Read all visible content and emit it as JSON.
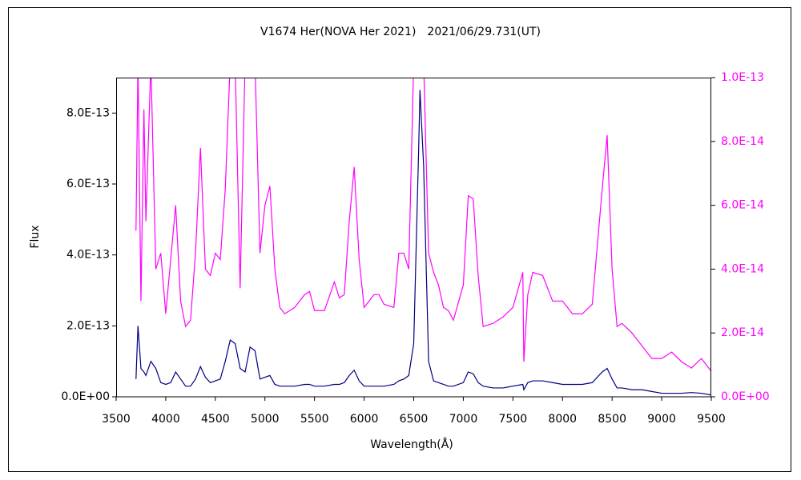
{
  "chart_data": {
    "type": "line",
    "title": "V1674 Her(NOVA Her 2021)　2021/06/29.731(UT)",
    "xlabel": "Wavelength(Å)",
    "ylabel": "Flux",
    "x": [
      3700,
      3720,
      3750,
      3780,
      3800,
      3850,
      3900,
      3950,
      4000,
      4050,
      4100,
      4150,
      4200,
      4250,
      4300,
      4350,
      4400,
      4450,
      4500,
      4550,
      4600,
      4650,
      4700,
      4750,
      4800,
      4850,
      4900,
      4950,
      5000,
      5050,
      5100,
      5150,
      5200,
      5300,
      5400,
      5450,
      5500,
      5600,
      5700,
      5750,
      5800,
      5850,
      5900,
      5950,
      6000,
      6100,
      6150,
      6200,
      6300,
      6350,
      6400,
      6450,
      6500,
      6550,
      6563,
      6600,
      6650,
      6700,
      6750,
      6800,
      6850,
      6900,
      7000,
      7050,
      7100,
      7150,
      7200,
      7300,
      7400,
      7500,
      7600,
      7610,
      7650,
      7700,
      7800,
      7900,
      8000,
      8100,
      8200,
      8300,
      8400,
      8450,
      8500,
      8550,
      8600,
      8700,
      8800,
      8900,
      9000,
      9100,
      9200,
      9300,
      9400,
      9500
    ],
    "series": [
      {
        "color": "#000080",
        "values": [
          5e-14,
          2e-13,
          8e-14,
          7e-14,
          6e-14,
          1e-13,
          8e-14,
          4e-14,
          3.5e-14,
          4e-14,
          7e-14,
          5e-14,
          3e-14,
          3e-14,
          5e-14,
          8.5e-14,
          5.5e-14,
          4e-14,
          4.5e-14,
          5e-14,
          1e-13,
          1.6e-13,
          1.5e-13,
          8e-14,
          7e-14,
          1.4e-13,
          1.3e-13,
          5e-14,
          5.5e-14,
          6e-14,
          3.5e-14,
          3e-14,
          3e-14,
          3e-14,
          3.5e-14,
          3.5e-14,
          3e-14,
          3e-14,
          3.5e-14,
          3.5e-14,
          4e-14,
          6e-14,
          7.5e-14,
          4.5e-14,
          3e-14,
          3e-14,
          3e-14,
          3e-14,
          3.5e-14,
          4.5e-14,
          5e-14,
          6e-14,
          1.5e-13,
          7e-13,
          8.65e-13,
          6.5e-13,
          1e-13,
          4.5e-14,
          4e-14,
          3.5e-14,
          3e-14,
          3e-14,
          4e-14,
          7e-14,
          6.5e-14,
          4e-14,
          3e-14,
          2.5e-14,
          2.5e-14,
          3e-14,
          3.5e-14,
          2e-14,
          4e-14,
          4.5e-14,
          4.5e-14,
          4e-14,
          3.5e-14,
          3.5e-14,
          3.5e-14,
          4e-14,
          7e-14,
          8e-14,
          5e-14,
          2.5e-14,
          2.5e-14,
          2e-14,
          2e-14,
          1.5e-14,
          1e-14,
          1e-14,
          1e-14,
          1.2e-14,
          1e-14,
          5e-15
        ]
      },
      {
        "color": "#ff00ff",
        "axis": "y2",
        "values": [
          5.2e-14,
          1.05e-13,
          3e-14,
          9e-14,
          5.5e-14,
          1.05e-13,
          4e-14,
          4.5e-14,
          2.6e-14,
          4.3e-14,
          6e-14,
          3e-14,
          2.2e-14,
          2.4e-14,
          4.5e-14,
          7.8e-14,
          4e-14,
          3.8e-14,
          4.5e-14,
          4.3e-14,
          6.5e-14,
          1.05e-13,
          1.05e-13,
          3.4e-14,
          1.05e-13,
          1.05e-13,
          1.05e-13,
          4.5e-14,
          6e-14,
          6.6e-14,
          4e-14,
          2.8e-14,
          2.6e-14,
          2.8e-14,
          3.2e-14,
          3.3e-14,
          2.7e-14,
          2.7e-14,
          3.6e-14,
          3.1e-14,
          3.2e-14,
          5.5e-14,
          7.2e-14,
          4.3e-14,
          2.8e-14,
          3.2e-14,
          3.2e-14,
          2.9e-14,
          2.8e-14,
          4.5e-14,
          4.5e-14,
          4e-14,
          1.05e-13,
          1.05e-13,
          1.05e-13,
          1.05e-13,
          4.5e-14,
          3.9e-14,
          3.5e-14,
          2.8e-14,
          2.7e-14,
          2.4e-14,
          3.5e-14,
          6.3e-14,
          6.2e-14,
          3.8e-14,
          2.2e-14,
          2.3e-14,
          2.5e-14,
          2.8e-14,
          3.9e-14,
          1.1e-14,
          3.2e-14,
          3.9e-14,
          3.8e-14,
          3e-14,
          3e-14,
          2.6e-14,
          2.6e-14,
          2.9e-14,
          6.5e-14,
          8.2e-14,
          4e-14,
          2.2e-14,
          2.3e-14,
          2e-14,
          1.6e-14,
          1.2e-14,
          1.2e-14,
          1.4e-14,
          1.1e-14,
          9e-15,
          1.2e-14,
          8e-15
        ]
      }
    ],
    "xlim": [
      3500,
      9500
    ],
    "xticks": [
      3500,
      4000,
      4500,
      5000,
      5500,
      6000,
      6500,
      7000,
      7500,
      8000,
      8500,
      9000,
      9500
    ],
    "ylim": [
      0,
      9e-13
    ],
    "yticks": [
      {
        "value": 0,
        "label": "0.0E+00"
      },
      {
        "value": 2e-13,
        "label": "2.0E-13"
      },
      {
        "value": 4e-13,
        "label": "4.0E-13"
      },
      {
        "value": 6e-13,
        "label": "6.0E-13"
      },
      {
        "value": 8e-13,
        "label": "8.0E-13"
      }
    ],
    "y2lim": [
      0,
      1e-13
    ],
    "y2ticks": [
      {
        "value": 0,
        "label": "0.0E+00"
      },
      {
        "value": 2e-14,
        "label": "2.0E-14"
      },
      {
        "value": 4e-14,
        "label": "4.0E-14"
      },
      {
        "value": 6e-14,
        "label": "6.0E-14"
      },
      {
        "value": 8e-14,
        "label": "8.0E-14"
      },
      {
        "value": 1e-13,
        "label": "1.0E-13"
      }
    ],
    "y2tick_color": "#ff00ff",
    "grid": false
  }
}
